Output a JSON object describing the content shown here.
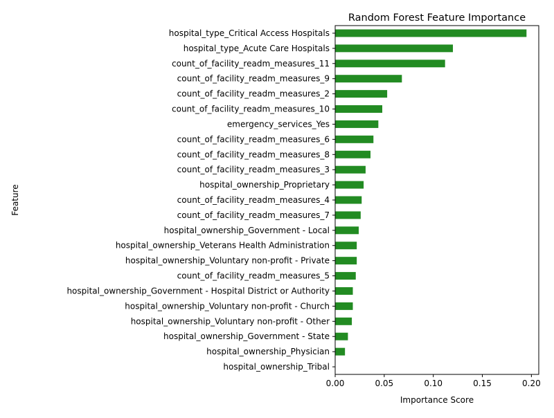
{
  "chart_data": {
    "type": "bar",
    "orientation": "horizontal",
    "title": "Random Forest Feature Importance",
    "xlabel": "Importance Score",
    "ylabel": "Feature",
    "xlim": [
      0,
      0.2
    ],
    "xticks": [
      0.0,
      0.05,
      0.1,
      0.15,
      0.2
    ],
    "xtick_labels": [
      "0.00",
      "0.05",
      "0.10",
      "0.15",
      "0.20"
    ],
    "grid": false,
    "bar_color": "#228b22",
    "categories": [
      "hospital_type_Critical Access Hospitals",
      "hospital_type_Acute Care Hospitals",
      "count_of_facility_readm_measures_11",
      "count_of_facility_readm_measures_9",
      "count_of_facility_readm_measures_2",
      "count_of_facility_readm_measures_10",
      "emergency_services_Yes",
      "count_of_facility_readm_measures_6",
      "count_of_facility_readm_measures_8",
      "count_of_facility_readm_measures_3",
      "hospital_ownership_Proprietary",
      "count_of_facility_readm_measures_4",
      "count_of_facility_readm_measures_7",
      "hospital_ownership_Government - Local",
      "hospital_ownership_Veterans Health Administration",
      "hospital_ownership_Voluntary non-profit - Private",
      "count_of_facility_readm_measures_5",
      "hospital_ownership_Government - Hospital District or Authority",
      "hospital_ownership_Voluntary non-profit - Church",
      "hospital_ownership_Voluntary non-profit - Other",
      "hospital_ownership_Government - State",
      "hospital_ownership_Physician",
      "hospital_ownership_Tribal"
    ],
    "values": [
      0.195,
      0.12,
      0.112,
      0.068,
      0.053,
      0.048,
      0.044,
      0.039,
      0.036,
      0.031,
      0.029,
      0.027,
      0.026,
      0.024,
      0.022,
      0.022,
      0.021,
      0.018,
      0.018,
      0.017,
      0.013,
      0.01,
      0.0
    ]
  }
}
